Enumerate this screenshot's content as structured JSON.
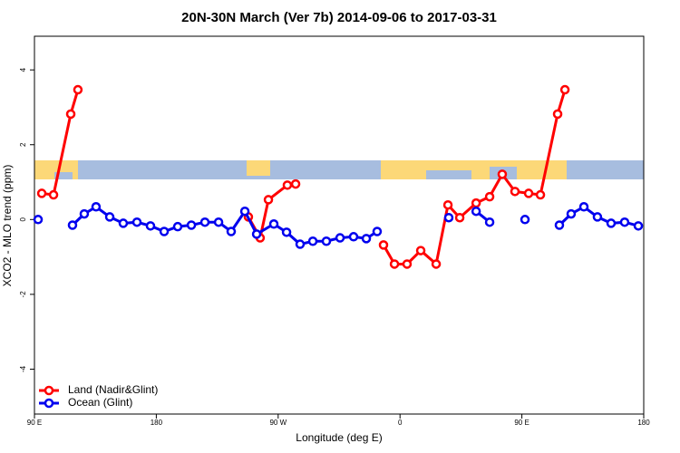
{
  "chart_data": {
    "type": "line",
    "title": "20N-30N March (Ver 7b)   2014-09-06 to 2017-03-31",
    "x_label": "Longitude (deg E)",
    "y_label": "XCO2 - MLO trend (ppm)",
    "xlim": [
      90,
      540
    ],
    "ylim": [
      -5.2,
      4.9
    ],
    "xticks": [
      {
        "value": 90,
        "label": "90 E"
      },
      180,
      {
        "value": 270,
        "label": "90 W"
      },
      {
        "value": 360,
        "label": "0"
      },
      {
        "value": 450,
        "label": "90 E"
      },
      {
        "value": 540,
        "label": "180"
      }
    ],
    "yticks": [
      -4,
      -2,
      0,
      2,
      4
    ],
    "legend": "bottom-left",
    "series": [
      {
        "name": "Land (Nadir&Glint)",
        "color": "#ff0000",
        "x": [
          95.4,
          104.1,
          116.8,
          122.1,
          null,
          248.0,
          256.7,
          262.8,
          276.8,
          282.9,
          null,
          347.8,
          355.9,
          365.2,
          375.3,
          386.7,
          395.4,
          404.1,
          416.2,
          426.2,
          435.5,
          444.9,
          455.0,
          463.7,
          476.4,
          481.8
        ],
        "values": [
          0.7,
          0.66,
          2.82,
          3.47,
          null,
          0.07,
          -0.49,
          0.53,
          0.92,
          0.95,
          null,
          -0.68,
          -1.19,
          -1.19,
          -0.83,
          -1.19,
          0.39,
          0.05,
          0.44,
          0.61,
          1.21,
          0.75,
          0.7,
          0.66,
          2.82,
          3.47
        ]
      },
      {
        "name": "Ocean (Glint)",
        "color": "#0000ee",
        "x": [
          92.7,
          null,
          118.1,
          126.8,
          135.5,
          145.6,
          155.6,
          165.7,
          175.7,
          185.8,
          195.8,
          205.9,
          215.9,
          226.0,
          235.3,
          245.4,
          254.1,
          266.8,
          276.2,
          286.2,
          295.6,
          305.6,
          315.7,
          325.7,
          335.1,
          343.1,
          null,
          396.0,
          null,
          416.2,
          426.2,
          null,
          452.3,
          null,
          477.7,
          486.4,
          495.8,
          505.8,
          515.9,
          525.9,
          536.0
        ],
        "values": [
          0.0,
          null,
          -0.15,
          0.15,
          0.34,
          0.07,
          -0.1,
          -0.07,
          -0.17,
          -0.32,
          -0.19,
          -0.15,
          -0.07,
          -0.07,
          -0.32,
          0.22,
          -0.39,
          -0.12,
          -0.34,
          -0.66,
          -0.58,
          -0.58,
          -0.49,
          -0.46,
          -0.51,
          -0.32,
          null,
          0.05,
          null,
          0.22,
          -0.07,
          null,
          0.0,
          null,
          -0.15,
          0.15,
          0.34,
          0.07,
          -0.1,
          -0.07,
          -0.17
        ]
      }
    ]
  }
}
